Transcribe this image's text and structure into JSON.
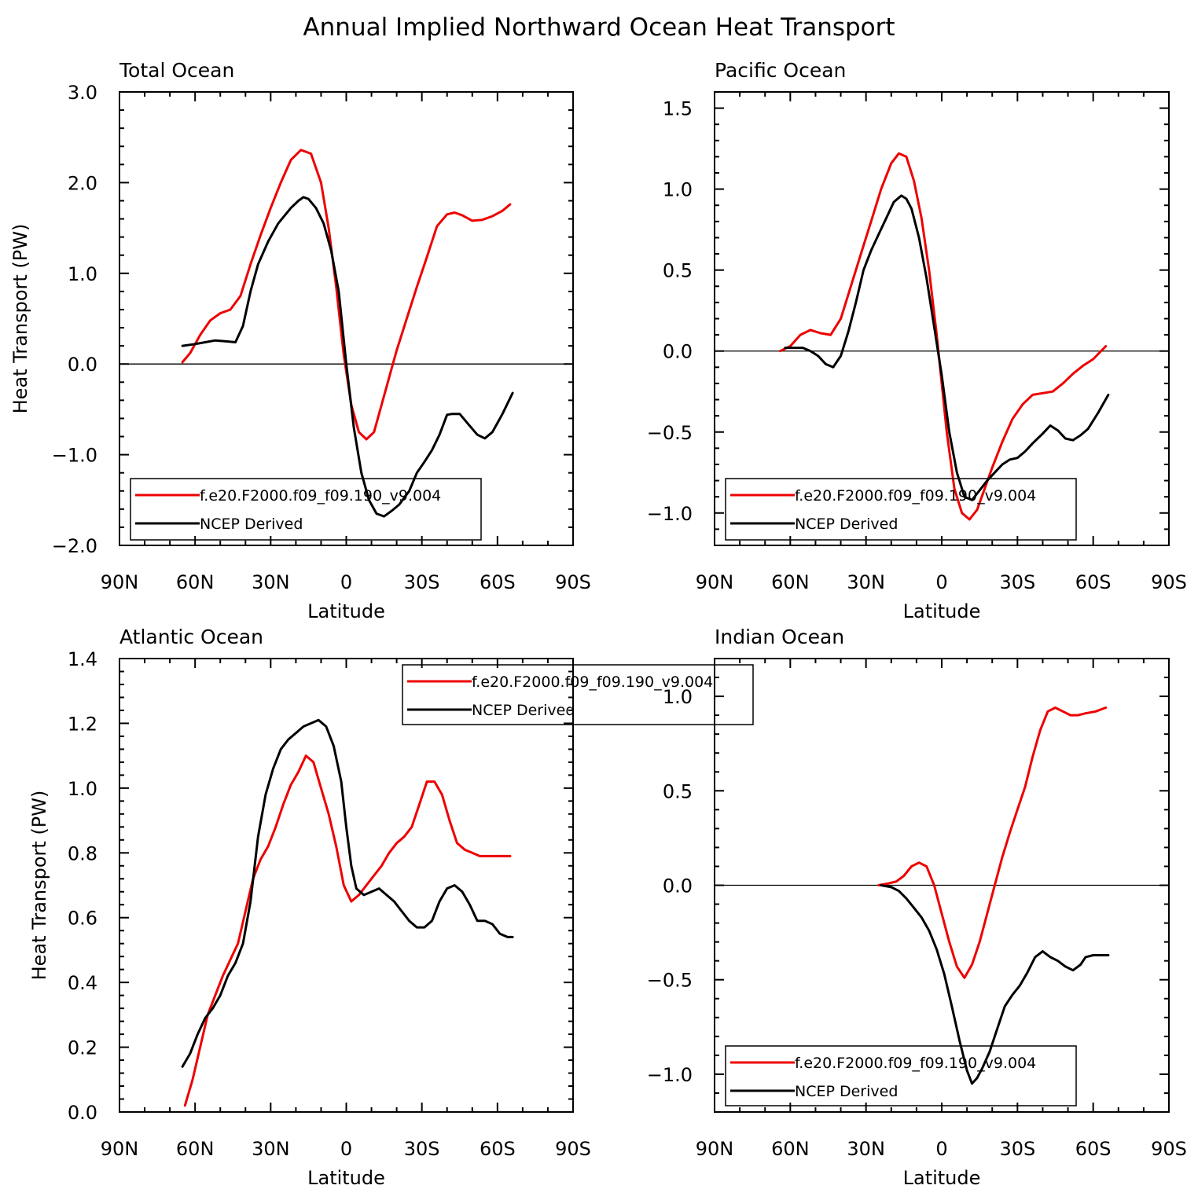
{
  "figure": {
    "title": "Annual Implied Northward Ocean Heat Transport",
    "xlabel": "Latitude",
    "ylabel": "Heat Transport (PW)",
    "colors": {
      "model": "#ee0000",
      "ncep": "#000000"
    }
  },
  "chart_data": [
    {
      "type": "line",
      "title": "Total Ocean",
      "xlabel": "Latitude",
      "ylabel": "Heat Transport (PW)",
      "xlim": [
        90,
        -90
      ],
      "ylim": [
        -2.0,
        3.0
      ],
      "x_ticks": [
        {
          "v": 90,
          "label": "90N"
        },
        {
          "v": 60,
          "label": "60N"
        },
        {
          "v": 30,
          "label": "30N"
        },
        {
          "v": 0,
          "label": "0"
        },
        {
          "v": -30,
          "label": "30S"
        },
        {
          "v": -60,
          "label": "60S"
        },
        {
          "v": -90,
          "label": "90S"
        }
      ],
      "y_ticks": [
        {
          "v": 3.0,
          "label": "3.0"
        },
        {
          "v": 2.0,
          "label": "2.0"
        },
        {
          "v": 1.0,
          "label": "1.0"
        },
        {
          "v": 0.0,
          "label": "0.0"
        },
        {
          "v": -1.0,
          "label": "−1.0"
        },
        {
          "v": -2.0,
          "label": "−2.0"
        }
      ],
      "zero_line": true,
      "legend": {
        "position": "bottom-left",
        "entries": [
          "f.e20.F2000.f09_f09.190_v9.004",
          "NCEP Derived"
        ]
      },
      "series": [
        {
          "name": "f.e20.F2000.f09_f09.190_v9.004",
          "color": "#ee0000",
          "x": [
            65,
            62,
            58,
            54,
            50,
            46,
            42,
            38,
            34,
            30,
            26,
            22,
            18,
            14,
            10,
            7,
            4,
            1,
            -2,
            -5,
            -8,
            -11,
            -14,
            -17,
            -20,
            -24,
            -28,
            -32,
            -36,
            -40,
            -43,
            -46,
            -50,
            -54,
            -58,
            -62,
            -65
          ],
          "values": [
            0.02,
            0.12,
            0.32,
            0.48,
            0.56,
            0.6,
            0.75,
            1.1,
            1.42,
            1.72,
            2.0,
            2.25,
            2.36,
            2.32,
            2.0,
            1.5,
            0.85,
            0.1,
            -0.45,
            -0.75,
            -0.83,
            -0.75,
            -0.45,
            -0.15,
            0.15,
            0.5,
            0.85,
            1.18,
            1.52,
            1.65,
            1.67,
            1.64,
            1.58,
            1.59,
            1.63,
            1.69,
            1.76
          ]
        },
        {
          "name": "NCEP Derived",
          "color": "#000000",
          "x": [
            65,
            60,
            56,
            52,
            48,
            44,
            41,
            38,
            35,
            31,
            27,
            22,
            19,
            17,
            15,
            12,
            9,
            6,
            3,
            0,
            -3,
            -6,
            -9,
            -12,
            -15,
            -18,
            -21,
            -25,
            -28,
            -31,
            -34,
            -37,
            -40,
            -42,
            -45,
            -48,
            -52,
            -55,
            -58,
            -62,
            -66
          ],
          "values": [
            0.2,
            0.22,
            0.24,
            0.26,
            0.25,
            0.24,
            0.42,
            0.8,
            1.1,
            1.35,
            1.55,
            1.72,
            1.8,
            1.84,
            1.82,
            1.72,
            1.55,
            1.25,
            0.8,
            0.0,
            -0.7,
            -1.2,
            -1.5,
            -1.65,
            -1.68,
            -1.62,
            -1.55,
            -1.4,
            -1.2,
            -1.08,
            -0.95,
            -0.78,
            -0.56,
            -0.55,
            -0.55,
            -0.65,
            -0.78,
            -0.82,
            -0.75,
            -0.55,
            -0.32
          ]
        }
      ]
    },
    {
      "type": "line",
      "title": "Pacific Ocean",
      "xlabel": "Latitude",
      "ylabel": "",
      "xlim": [
        90,
        -90
      ],
      "ylim": [
        -1.2,
        1.6
      ],
      "x_ticks": [
        {
          "v": 90,
          "label": "90N"
        },
        {
          "v": 60,
          "label": "60N"
        },
        {
          "v": 30,
          "label": "30N"
        },
        {
          "v": 0,
          "label": "0"
        },
        {
          "v": -30,
          "label": "30S"
        },
        {
          "v": -60,
          "label": "60S"
        },
        {
          "v": -90,
          "label": "90S"
        }
      ],
      "y_ticks": [
        {
          "v": 1.5,
          "label": "1.5"
        },
        {
          "v": 1.0,
          "label": "1.0"
        },
        {
          "v": 0.5,
          "label": "0.5"
        },
        {
          "v": 0.0,
          "label": "0.0"
        },
        {
          "v": -0.5,
          "label": "−0.5"
        },
        {
          "v": -1.0,
          "label": "−1.0"
        }
      ],
      "zero_line": true,
      "legend": {
        "position": "bottom-left",
        "entries": [
          "f.e20.F2000.f09_f09.190_v9.004",
          "NCEP Derived"
        ]
      },
      "series": [
        {
          "name": "f.e20.F2000.f09_f09.190_v9.004",
          "color": "#ee0000",
          "x": [
            64,
            60,
            56,
            52,
            48,
            44,
            40,
            36,
            32,
            28,
            24,
            20,
            17,
            14,
            11,
            8,
            5,
            2,
            0,
            -2,
            -5,
            -8,
            -11,
            -14,
            -17,
            -20,
            -24,
            -28,
            -32,
            -36,
            -40,
            -44,
            -48,
            -52,
            -56,
            -60,
            -65
          ],
          "values": [
            0.0,
            0.03,
            0.1,
            0.13,
            0.11,
            0.1,
            0.2,
            0.4,
            0.6,
            0.8,
            1.0,
            1.16,
            1.22,
            1.2,
            1.05,
            0.82,
            0.5,
            0.1,
            -0.2,
            -0.5,
            -0.85,
            -1.0,
            -1.04,
            -0.98,
            -0.85,
            -0.72,
            -0.56,
            -0.42,
            -0.33,
            -0.27,
            -0.26,
            -0.25,
            -0.2,
            -0.14,
            -0.09,
            -0.05,
            0.03
          ]
        },
        {
          "name": "NCEP Derived",
          "color": "#000000",
          "x": [
            62,
            58,
            55,
            52,
            49,
            46,
            43,
            40,
            37,
            34,
            31,
            28,
            25,
            22,
            19,
            16,
            14,
            12,
            9,
            6,
            3,
            0,
            -3,
            -6,
            -9,
            -12,
            -15,
            -18,
            -21,
            -24,
            -27,
            -30,
            -33,
            -36,
            -40,
            -43,
            -46,
            -49,
            -52,
            -55,
            -58,
            -62,
            -66
          ],
          "values": [
            0.02,
            0.02,
            0.02,
            0.0,
            -0.03,
            -0.08,
            -0.1,
            -0.03,
            0.12,
            0.3,
            0.5,
            0.62,
            0.72,
            0.82,
            0.92,
            0.96,
            0.94,
            0.88,
            0.7,
            0.45,
            0.15,
            -0.15,
            -0.5,
            -0.75,
            -0.9,
            -0.92,
            -0.86,
            -0.8,
            -0.75,
            -0.7,
            -0.67,
            -0.66,
            -0.62,
            -0.57,
            -0.51,
            -0.46,
            -0.49,
            -0.54,
            -0.55,
            -0.52,
            -0.48,
            -0.38,
            -0.27
          ]
        }
      ]
    },
    {
      "type": "line",
      "title": "Atlantic Ocean",
      "xlabel": "Latitude",
      "ylabel": "Heat Transport (PW)",
      "xlim": [
        90,
        -90
      ],
      "ylim": [
        0.0,
        1.4
      ],
      "x_ticks": [
        {
          "v": 90,
          "label": "90N"
        },
        {
          "v": 60,
          "label": "60N"
        },
        {
          "v": 30,
          "label": "30N"
        },
        {
          "v": 0,
          "label": "0"
        },
        {
          "v": -30,
          "label": "30S"
        },
        {
          "v": -60,
          "label": "60S"
        },
        {
          "v": -90,
          "label": "90S"
        }
      ],
      "y_ticks": [
        {
          "v": 1.4,
          "label": "1.4"
        },
        {
          "v": 1.2,
          "label": "1.2"
        },
        {
          "v": 1.0,
          "label": "1.0"
        },
        {
          "v": 0.8,
          "label": "0.8"
        },
        {
          "v": 0.6,
          "label": "0.6"
        },
        {
          "v": 0.4,
          "label": "0.4"
        },
        {
          "v": 0.2,
          "label": "0.2"
        },
        {
          "v": 0.0,
          "label": "0.0"
        }
      ],
      "zero_line": false,
      "legend": {
        "position": "top-center",
        "entries": [
          "f.e20.F2000.f09_f09.190_v9.004",
          "NCEP Derived"
        ]
      },
      "series": [
        {
          "name": "f.e20.F2000.f09_f09.190_v9.004",
          "color": "#ee0000",
          "x": [
            64,
            61,
            58,
            55,
            52,
            49,
            46,
            43,
            40,
            37,
            34,
            31,
            28,
            25,
            22,
            19,
            16,
            13,
            10,
            7,
            4,
            1,
            -2,
            -5,
            -8,
            -11,
            -14,
            -17,
            -20,
            -23,
            -26,
            -29,
            -32,
            -35,
            -38,
            -41,
            -44,
            -47,
            -50,
            -53,
            -56,
            -59,
            -62,
            -65
          ],
          "values": [
            0.02,
            0.1,
            0.2,
            0.3,
            0.36,
            0.42,
            0.47,
            0.52,
            0.62,
            0.72,
            0.78,
            0.82,
            0.88,
            0.95,
            1.01,
            1.05,
            1.1,
            1.08,
            1.0,
            0.92,
            0.82,
            0.7,
            0.65,
            0.67,
            0.7,
            0.73,
            0.76,
            0.8,
            0.83,
            0.85,
            0.88,
            0.95,
            1.02,
            1.02,
            0.98,
            0.9,
            0.83,
            0.81,
            0.8,
            0.79,
            0.79,
            0.79,
            0.79,
            0.79
          ]
        },
        {
          "name": "NCEP Derived",
          "color": "#000000",
          "x": [
            65,
            62,
            59,
            56,
            53,
            50,
            47,
            44,
            41,
            38,
            35,
            32,
            29,
            26,
            23,
            20,
            17,
            14,
            11,
            8,
            5,
            2,
            0,
            -2,
            -4,
            -7,
            -10,
            -13,
            -16,
            -19,
            -22,
            -25,
            -28,
            -31,
            -34,
            -37,
            -40,
            -43,
            -46,
            -49,
            -52,
            -55,
            -58,
            -61,
            -64,
            -66
          ],
          "values": [
            0.14,
            0.18,
            0.24,
            0.29,
            0.32,
            0.36,
            0.42,
            0.46,
            0.52,
            0.65,
            0.85,
            0.98,
            1.06,
            1.12,
            1.15,
            1.17,
            1.19,
            1.2,
            1.21,
            1.19,
            1.13,
            1.02,
            0.88,
            0.76,
            0.69,
            0.67,
            0.68,
            0.69,
            0.67,
            0.65,
            0.62,
            0.59,
            0.57,
            0.57,
            0.59,
            0.65,
            0.69,
            0.7,
            0.68,
            0.64,
            0.59,
            0.59,
            0.58,
            0.55,
            0.54,
            0.54
          ]
        }
      ]
    },
    {
      "type": "line",
      "title": "Indian Ocean",
      "xlabel": "Latitude",
      "ylabel": "",
      "xlim": [
        90,
        -90
      ],
      "ylim": [
        -1.2,
        1.2
      ],
      "x_ticks": [
        {
          "v": 90,
          "label": "90N"
        },
        {
          "v": 60,
          "label": "60N"
        },
        {
          "v": 30,
          "label": "30N"
        },
        {
          "v": 0,
          "label": "0"
        },
        {
          "v": -30,
          "label": "30S"
        },
        {
          "v": -60,
          "label": "60S"
        },
        {
          "v": -90,
          "label": "90S"
        }
      ],
      "y_ticks": [
        {
          "v": 1.0,
          "label": "1.0"
        },
        {
          "v": 0.5,
          "label": "0.5"
        },
        {
          "v": 0.0,
          "label": "0.0"
        },
        {
          "v": -0.5,
          "label": "−0.5"
        },
        {
          "v": -1.0,
          "label": "−1.0"
        }
      ],
      "zero_line": true,
      "legend": {
        "position": "bottom-left",
        "entries": [
          "f.e20.F2000.f09_f09.190_v9.004",
          "NCEP Derived"
        ]
      },
      "series": [
        {
          "name": "f.e20.F2000.f09_f09.190_v9.004",
          "color": "#ee0000",
          "x": [
            25,
            21,
            18,
            15,
            12,
            9,
            6,
            3,
            0,
            -3,
            -6,
            -9,
            -12,
            -15,
            -18,
            -21,
            -24,
            -27,
            -30,
            -33,
            -36,
            -39,
            -42,
            -45,
            -48,
            -51,
            -54,
            -57,
            -61,
            -65
          ],
          "values": [
            0.0,
            0.01,
            0.02,
            0.05,
            0.1,
            0.12,
            0.1,
            0.0,
            -0.15,
            -0.3,
            -0.43,
            -0.49,
            -0.42,
            -0.3,
            -0.15,
            0.0,
            0.15,
            0.28,
            0.4,
            0.52,
            0.68,
            0.82,
            0.92,
            0.94,
            0.92,
            0.9,
            0.9,
            0.91,
            0.92,
            0.94
          ]
        },
        {
          "name": "NCEP Derived",
          "color": "#000000",
          "x": [
            24,
            20,
            17,
            14,
            11,
            8,
            5,
            2,
            -1,
            -4,
            -7,
            -10,
            -12,
            -14,
            -16,
            -19,
            -22,
            -25,
            -28,
            -31,
            -34,
            -37,
            -40,
            -43,
            -46,
            -49,
            -52,
            -55,
            -57,
            -60,
            -63,
            -66
          ],
          "values": [
            0.0,
            -0.01,
            -0.03,
            -0.07,
            -0.12,
            -0.17,
            -0.24,
            -0.34,
            -0.47,
            -0.64,
            -0.82,
            -0.98,
            -1.05,
            -1.02,
            -0.97,
            -0.88,
            -0.76,
            -0.64,
            -0.58,
            -0.53,
            -0.46,
            -0.38,
            -0.35,
            -0.38,
            -0.4,
            -0.43,
            -0.45,
            -0.42,
            -0.38,
            -0.37,
            -0.37,
            -0.37
          ]
        }
      ]
    }
  ]
}
